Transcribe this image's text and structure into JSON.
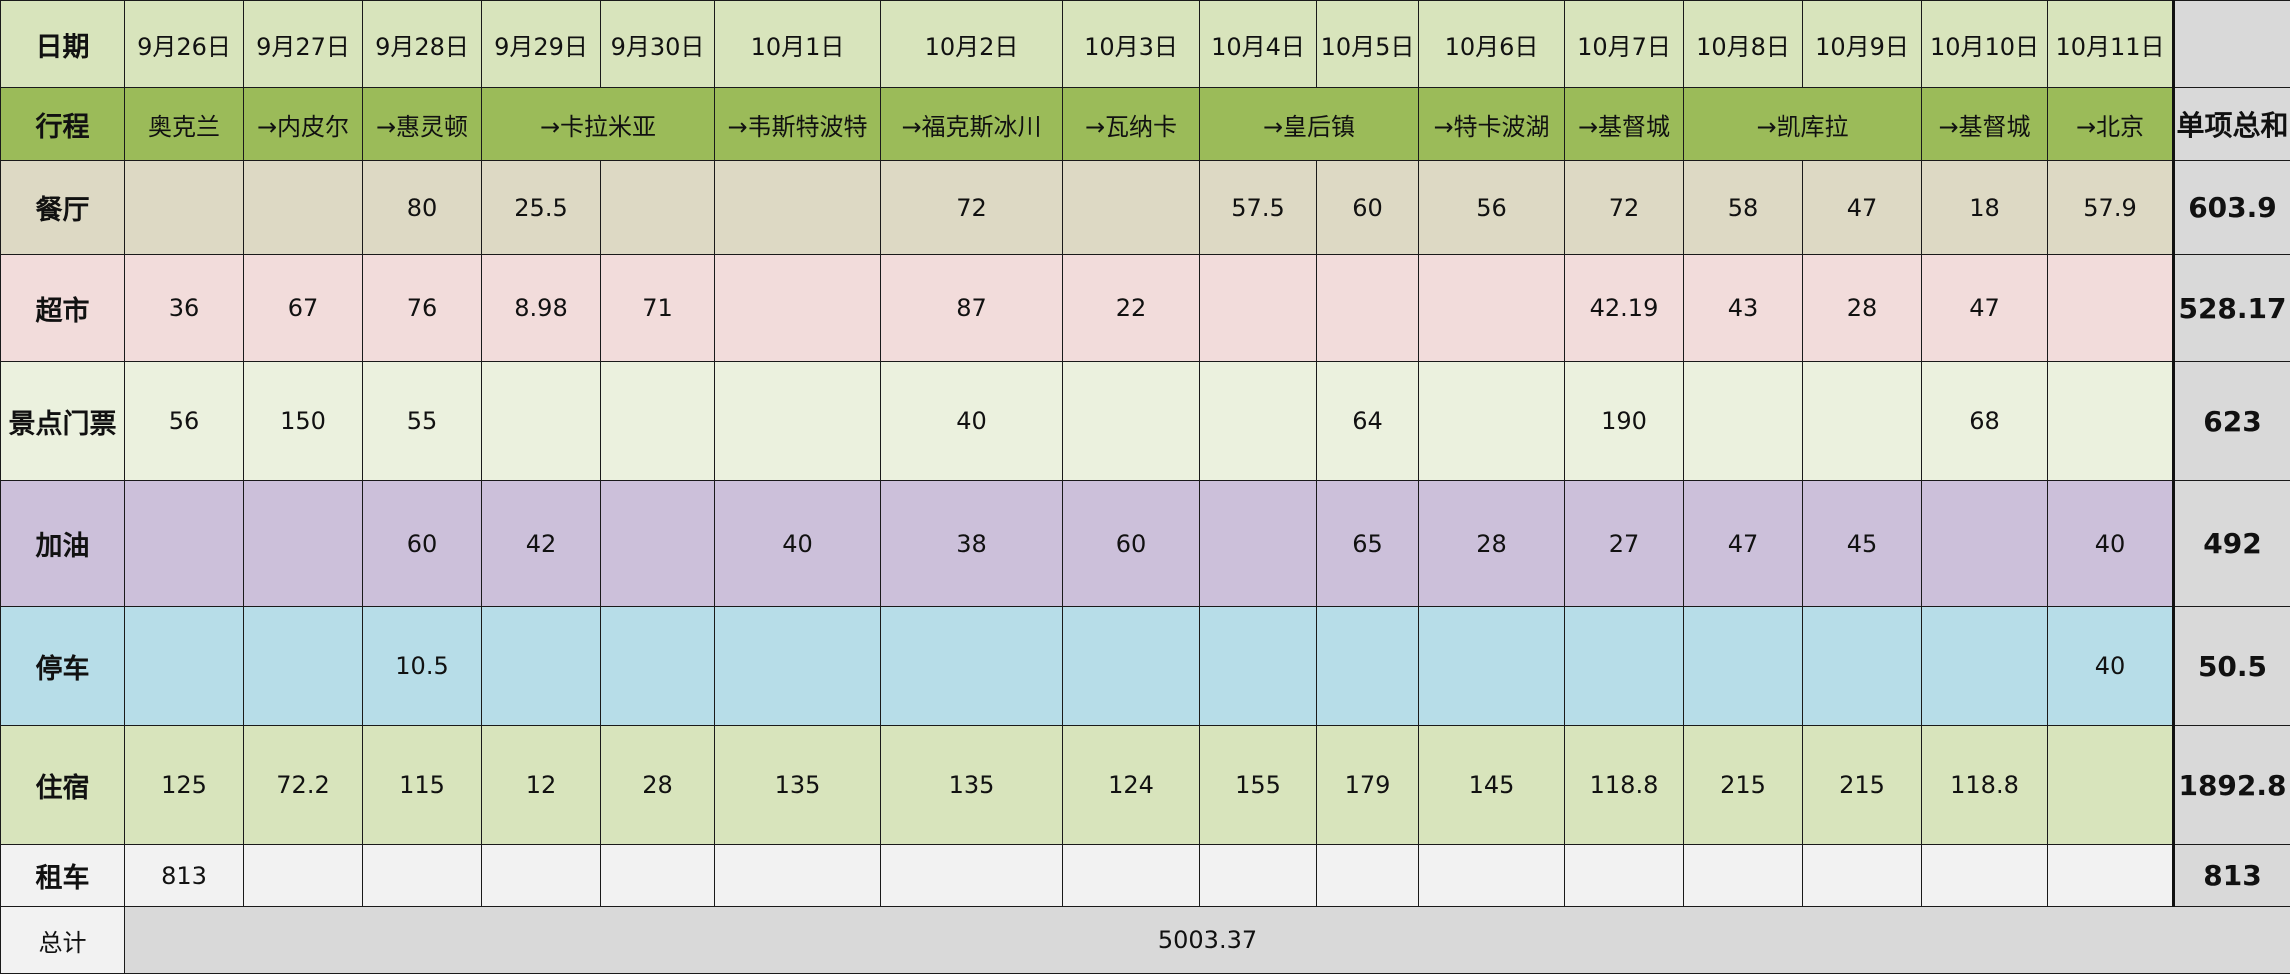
{
  "header": {
    "date_label": "日期",
    "dates": [
      "9月26日",
      "9月27日",
      "9月28日",
      "9月29日",
      "9月30日",
      "10月1日",
      "10月2日",
      "10月3日",
      "10月4日",
      "10月5日",
      "10月6日",
      "10月7日",
      "10月8日",
      "10月9日",
      "10月10日",
      "10月11日"
    ],
    "route_label": "行程",
    "routes": [
      "奥克兰",
      "→内皮尔",
      "→惠灵顿",
      "→卡拉米亚",
      "→韦斯特波特",
      "→福克斯冰川",
      "→瓦纳卡",
      "→皇后镇",
      "→特卡波湖",
      "→基督城",
      "→凯库拉",
      "→基督城",
      "→北京"
    ],
    "item_total_label": "单项总和"
  },
  "rows": {
    "restaurant": {
      "label": "餐厅",
      "cells": [
        "",
        "",
        "80",
        "25.5",
        "",
        "",
        "72",
        "",
        "57.5",
        "60",
        "56",
        "72",
        "58",
        "47",
        "18",
        "57.9"
      ],
      "total": "603.9"
    },
    "supermarket": {
      "label": "超市",
      "cells": [
        "36",
        "67",
        "76",
        "8.98",
        "71",
        "",
        "87",
        "22",
        "",
        "",
        "",
        "42.19",
        "43",
        "28",
        "47",
        ""
      ],
      "total": "528.17"
    },
    "ticket": {
      "label": "景点门票",
      "cells": [
        "56",
        "150",
        "55",
        "",
        "",
        "",
        "40",
        "",
        "",
        "64",
        "",
        "190",
        "",
        "",
        "68",
        ""
      ],
      "total": "623"
    },
    "fuel": {
      "label": "加油",
      "cells": [
        "",
        "",
        "60",
        "42",
        "",
        "40",
        "38",
        "60",
        "",
        "65",
        "28",
        "27",
        "47",
        "45",
        "",
        "40"
      ],
      "total": "492"
    },
    "parking": {
      "label": "停车",
      "cells": [
        "",
        "",
        "10.5",
        "",
        "",
        "",
        "",
        "",
        "",
        "",
        "",
        "",
        "",
        "",
        "",
        "40"
      ],
      "total": "50.5"
    },
    "lodging": {
      "label": "住宿",
      "cells": [
        "125",
        "72.2",
        "115",
        "12",
        "28",
        "135",
        "135",
        "124",
        "155",
        "179",
        "145",
        "118.8",
        "215",
        "215",
        "118.8",
        ""
      ],
      "total": "1892.8"
    },
    "rental": {
      "label": "租车",
      "cells": [
        "813",
        "",
        "",
        "",
        "",
        "",
        "",
        "",
        "",
        "",
        "",
        "",
        "",
        "",
        "",
        ""
      ],
      "total": "813"
    }
  },
  "summary": {
    "label": "总计",
    "value": "5003.37"
  }
}
